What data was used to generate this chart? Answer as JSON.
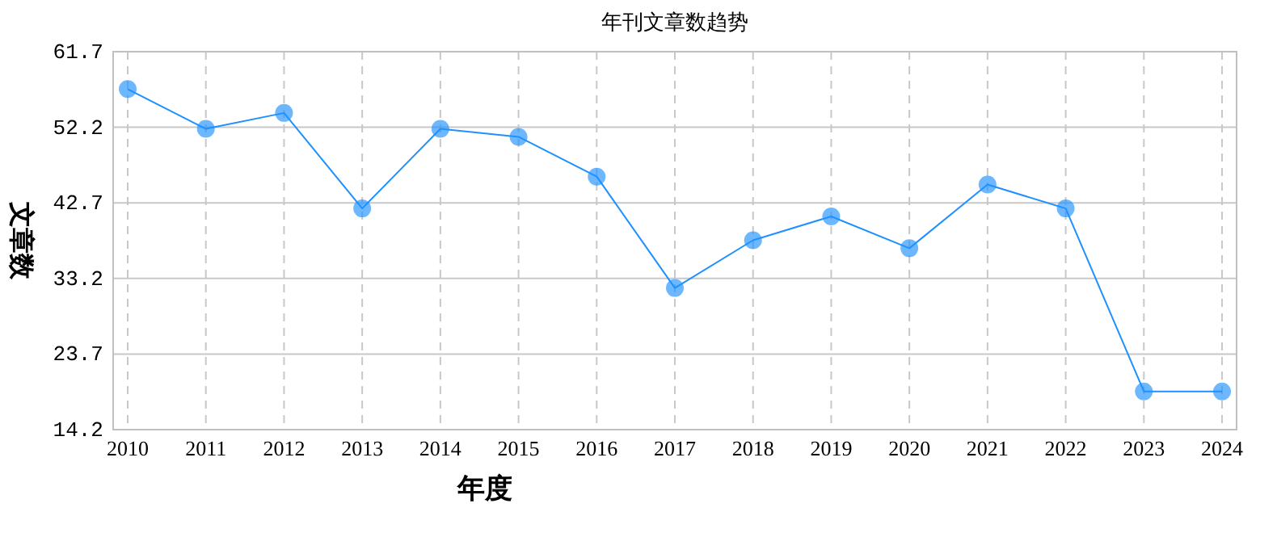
{
  "chart_data": {
    "type": "line",
    "title": "年刊文章数趋势",
    "xlabel": "年度",
    "ylabel": "文章数",
    "categories": [
      "2010",
      "2011",
      "2012",
      "2013",
      "2014",
      "2015",
      "2016",
      "2017",
      "2018",
      "2019",
      "2020",
      "2021",
      "2022",
      "2023",
      "2024"
    ],
    "series": [
      {
        "color": "#1e90ff",
        "values": [
          57,
          52,
          54,
          42,
          52,
          51,
          46,
          32,
          38,
          41,
          37,
          45,
          42,
          19,
          19
        ]
      }
    ],
    "ylim": [
      14.2,
      61.7
    ],
    "yticks": [
      14.2,
      23.7,
      33.2,
      42.7,
      52.2,
      61.7
    ],
    "grid": true,
    "marker": "circle",
    "line_style": "solid"
  }
}
